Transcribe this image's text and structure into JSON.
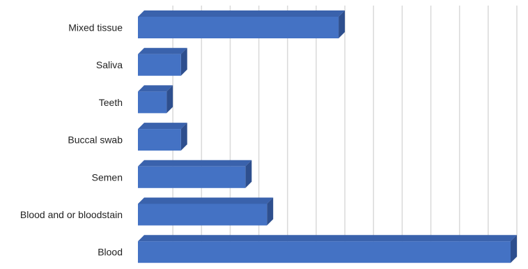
{
  "chart_data": {
    "type": "bar",
    "orientation": "horizontal",
    "three_d": true,
    "title": "",
    "xlabel": "",
    "ylabel": "",
    "categories": [
      "Blood",
      "Blood and or bloodstain",
      "Semen",
      "Buccal swab",
      "Teeth",
      "Saliva",
      "Mixed tissue"
    ],
    "values": [
      26,
      9,
      7.5,
      3,
      2,
      3,
      14
    ],
    "xlim": [
      0,
      26
    ],
    "x_gridline_step": 2,
    "grid": true,
    "legend": "none",
    "colors": {
      "bar_front": "#4472c4",
      "bar_top": "#3a62ac",
      "bar_side": "#2e4f8e",
      "gridline": "#d9d9d9",
      "text": "#222222"
    }
  }
}
